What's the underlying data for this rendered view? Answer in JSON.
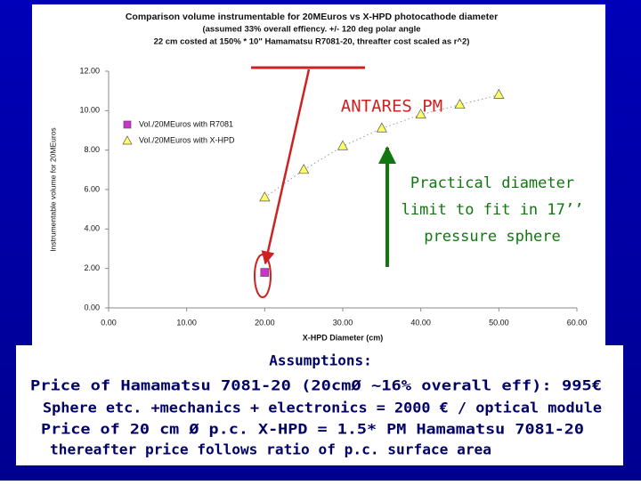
{
  "chart_data": {
    "type": "scatter",
    "title": "Comparison volume instrumentable for 20MEuros vs X-HPD photocathode diameter",
    "subtitle": [
      "(assumed 33% overall effiency.  +/- 120 deg polar angle",
      "22 cm costed at 150% * 10\" Hamamatsu R7081-20, threafter cost scaled as r^2)"
    ],
    "x_label": "X-HPD Diameter (cm)",
    "y_label": "Instrumentable volume for 20MEuros",
    "x": [
      20,
      25,
      30,
      35,
      40,
      45,
      50
    ],
    "series": [
      {
        "name": "Vol./20MEuros with R7081",
        "color": "#cc33cc",
        "marker": "square",
        "values": [
          1.8,
          null,
          null,
          null,
          null,
          null,
          null
        ]
      },
      {
        "name": "Vol./20MEuros with X-HPD",
        "color": "#ffff66",
        "marker": "triangle",
        "values": [
          5.6,
          7.0,
          8.2,
          9.1,
          9.8,
          10.3,
          10.8
        ]
      }
    ],
    "xlim": [
      0,
      60
    ],
    "xticks": [
      {
        "value": 0,
        "label": "0.00"
      },
      {
        "value": 10,
        "label": "10.00"
      },
      {
        "value": 20,
        "label": "20.00"
      },
      {
        "value": 30,
        "label": "30.00"
      },
      {
        "value": 40,
        "label": "40.00"
      },
      {
        "value": 50,
        "label": "50.00"
      },
      {
        "value": 60,
        "label": "60.00"
      }
    ],
    "ylim": [
      0,
      12
    ],
    "yticks": [
      {
        "value": 0,
        "label": "0.00"
      },
      {
        "value": 2,
        "label": "2.00"
      },
      {
        "value": 4,
        "label": "4.00"
      },
      {
        "value": 6,
        "label": "6.00"
      },
      {
        "value": 8,
        "label": "8.00"
      },
      {
        "value": 10,
        "label": "10.00"
      },
      {
        "value": 12,
        "label": "12.00"
      }
    ],
    "annotations": {
      "antares": "ANTARES PM",
      "limit": [
        "Practical diameter",
        "limit to fit in 17’’",
        "pressure sphere"
      ]
    }
  },
  "notes": {
    "heading": "Assumptions:",
    "lines": [
      "Price of Hamamatsu 7081-20 (20cmØ ~16% overall eff): 995€",
      "Sphere etc. +mechanics + electronics = 2000 € / optical module",
      "Price of 20 cm Ø p.c. X-HPD  = 1.5* PM Hamamatsu 7081-20",
      "thereafter price follows ratio of p.c. surface area"
    ]
  }
}
